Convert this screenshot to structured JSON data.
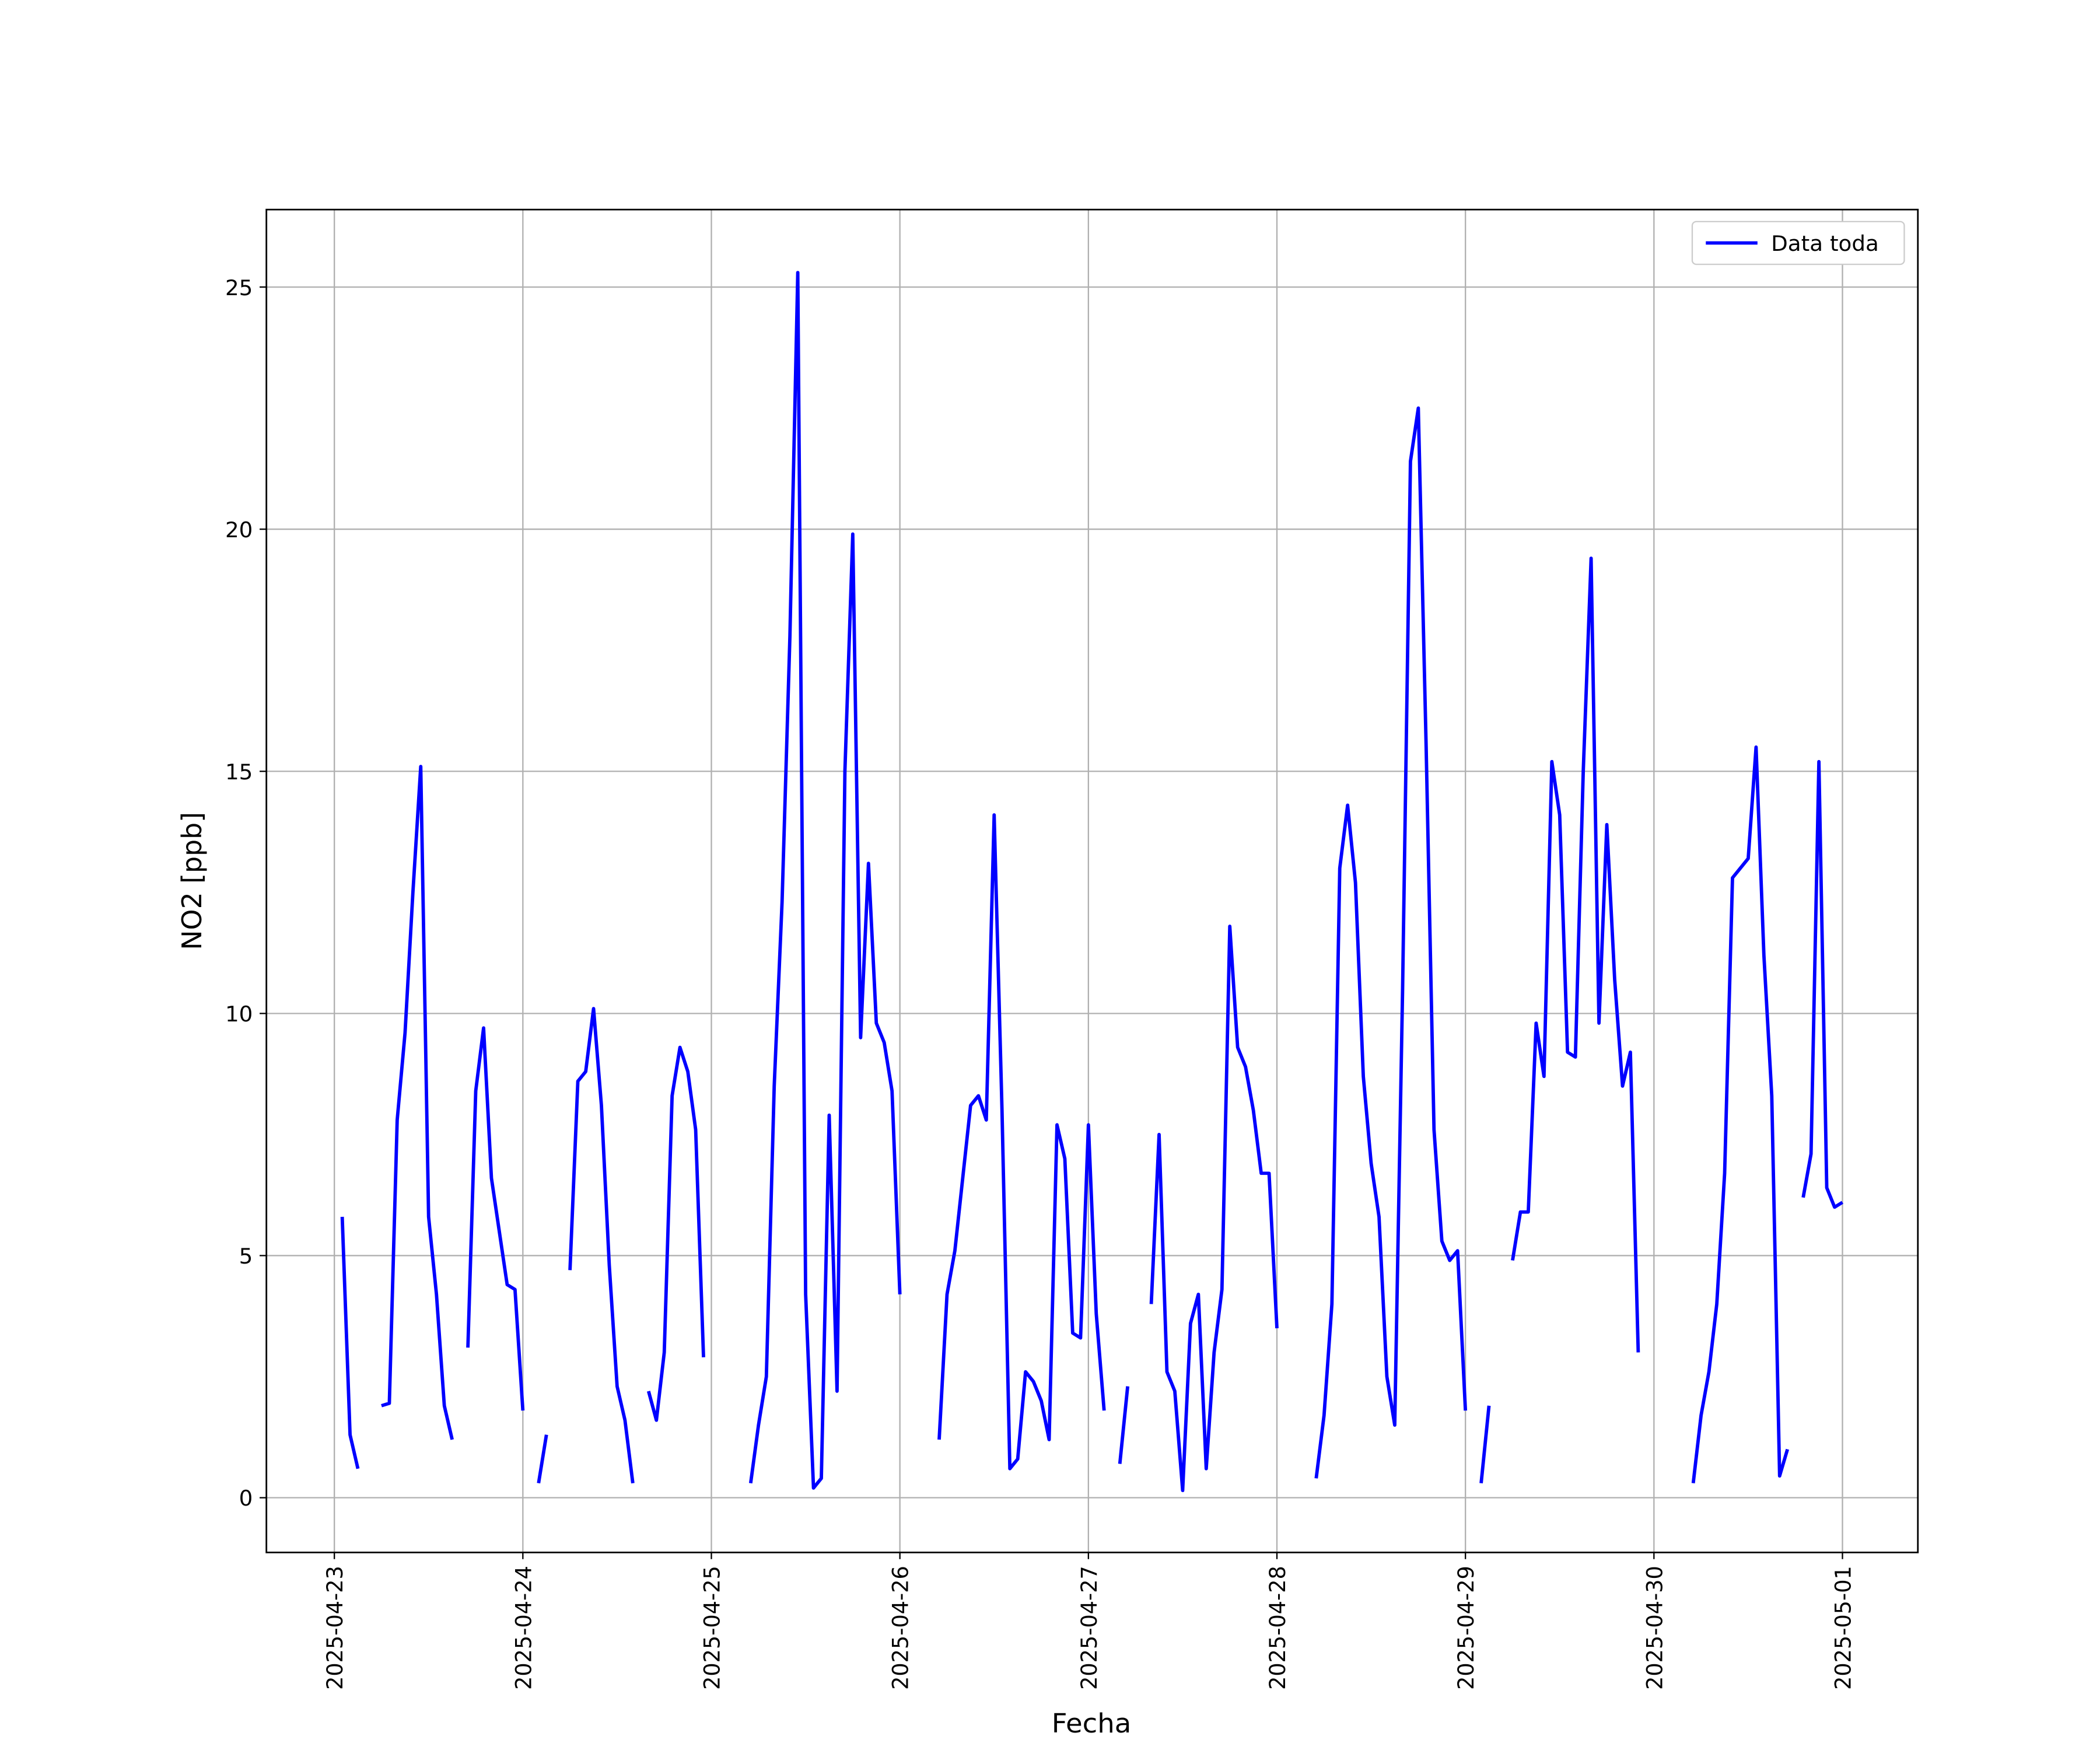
{
  "chart_data": {
    "type": "line",
    "xlabel": "Fecha",
    "ylabel": "NO2 [ppb]",
    "x": [
      0,
      1,
      2,
      3,
      4,
      5,
      6,
      7,
      8,
      9,
      10,
      11,
      12,
      13,
      14,
      15,
      16,
      17,
      18,
      19,
      20,
      21,
      22,
      23,
      24,
      25,
      26,
      27,
      28,
      29,
      30,
      31,
      32,
      33,
      34,
      35,
      36,
      37,
      38,
      39,
      40,
      41,
      42,
      43,
      44,
      45,
      46,
      47,
      48,
      49,
      50,
      51,
      52,
      53,
      54,
      55,
      56,
      57,
      58,
      59,
      60,
      61,
      62,
      63,
      64,
      65,
      66,
      67,
      68,
      69,
      70,
      71,
      72,
      73,
      74,
      75,
      76,
      77,
      78,
      79,
      80,
      81,
      82,
      83,
      84,
      85,
      86,
      87,
      88,
      89,
      90,
      91,
      92,
      93,
      94,
      95,
      96,
      97,
      98,
      99,
      100,
      101,
      102,
      103,
      104,
      105,
      106,
      107,
      108,
      109,
      110,
      111,
      112,
      113,
      114,
      115,
      116,
      117,
      118,
      119,
      120,
      121,
      122,
      123,
      124,
      125,
      126,
      127,
      128,
      129,
      130,
      131,
      132,
      133,
      134,
      135,
      136,
      137,
      138,
      139,
      140,
      141,
      142,
      143,
      144,
      145,
      146,
      147,
      148,
      149,
      150,
      151,
      152,
      153,
      154,
      155,
      156,
      157,
      158,
      159,
      160,
      161,
      162,
      163,
      164,
      165,
      166,
      167,
      168,
      169,
      170,
      171,
      172,
      173,
      174,
      175,
      176,
      177,
      178,
      179,
      180,
      181,
      182,
      183,
      184,
      185,
      186,
      187,
      188,
      189,
      190,
      191,
      192
    ],
    "series": [
      {
        "name": "Data toda",
        "color": "#0000ff",
        "values": [
          null,
          5.8,
          1.3,
          0.6,
          null,
          null,
          1.9,
          1.95,
          7.8,
          9.6,
          12.5,
          15.1,
          5.8,
          4.2,
          1.9,
          1.2,
          null,
          3.1,
          8.4,
          9.7,
          6.6,
          5.5,
          4.4,
          4.3,
          1.8,
          null,
          0.3,
          1.3,
          null,
          null,
          4.7,
          8.6,
          8.8,
          10.1,
          8.1,
          4.8,
          2.3,
          1.6,
          0.3,
          null,
          2.2,
          1.6,
          3.0,
          8.3,
          9.3,
          8.8,
          7.6,
          2.9,
          null,
          null,
          null,
          null,
          null,
          0.3,
          1.5,
          2.5,
          8.5,
          12.3,
          17.8,
          25.3,
          4.2,
          0.2,
          0.4,
          7.9,
          2.2,
          15.0,
          19.9,
          9.5,
          13.1,
          9.8,
          9.4,
          8.4,
          4.2,
          null,
          null,
          null,
          null,
          1.2,
          4.2,
          5.1,
          6.6,
          8.1,
          8.3,
          7.8,
          14.1,
          8.0,
          0.6,
          0.8,
          2.6,
          2.4,
          2.0,
          1.2,
          7.7,
          7.0,
          3.4,
          3.3,
          7.7,
          3.8,
          1.8,
          null,
          0.7,
          2.3,
          null,
          null,
          4.0,
          7.5,
          2.6,
          2.2,
          0.15,
          3.6,
          4.2,
          0.6,
          3.0,
          4.3,
          11.8,
          9.3,
          8.9,
          8.0,
          6.7,
          6.7,
          3.5,
          null,
          null,
          null,
          null,
          0.4,
          1.7,
          4.0,
          13.0,
          14.3,
          12.7,
          8.7,
          6.9,
          5.8,
          2.5,
          1.5,
          10.5,
          21.4,
          22.5,
          15.5,
          7.6,
          5.3,
          4.9,
          5.1,
          1.8,
          null,
          0.3,
          1.9,
          null,
          null,
          4.9,
          5.9,
          5.9,
          9.8,
          8.7,
          15.2,
          14.1,
          9.2,
          9.1,
          15.0,
          19.4,
          9.8,
          13.9,
          10.7,
          8.5,
          9.2,
          3.0,
          null,
          null,
          null,
          null,
          null,
          null,
          0.3,
          1.7,
          2.6,
          4.0,
          6.7,
          12.8,
          13.0,
          13.2,
          15.5,
          11.2,
          8.3,
          0.45,
          1.0,
          null,
          6.2,
          7.1,
          15.2,
          6.4,
          6.0,
          6.1
        ]
      }
    ],
    "xlim": [
      -8.65,
      201.6
    ],
    "xticks": [
      {
        "value": 0,
        "label": "2025-04-23"
      },
      {
        "value": 24,
        "label": "2025-04-24"
      },
      {
        "value": 48,
        "label": "2025-04-25"
      },
      {
        "value": 72,
        "label": "2025-04-26"
      },
      {
        "value": 96,
        "label": "2025-04-27"
      },
      {
        "value": 120,
        "label": "2025-04-28"
      },
      {
        "value": 144,
        "label": "2025-04-29"
      },
      {
        "value": 168,
        "label": "2025-04-30"
      },
      {
        "value": 192,
        "label": "2025-05-01"
      }
    ],
    "ylim": [
      -1.13,
      26.6
    ],
    "yticks": [
      0,
      5,
      10,
      15,
      20,
      25
    ],
    "grid": true,
    "legend": "upper right"
  }
}
